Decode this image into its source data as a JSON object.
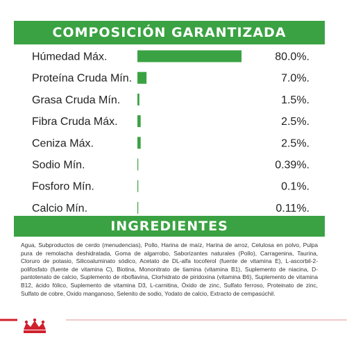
{
  "composition_title": "COMPOSICIÓN GARANTIZADA",
  "ingredients_title": "INGREDIENTES",
  "ingredients_text": "Agua, Subproductos de cerdo (menudencias), Pollo, Harina de maíz, Harina de arroz, Celulosa en polvo, Pulpa pura de remolacha deshidratada, Goma de algarrobo, Saborizantes naturales (Pollo), Carragenina, Taurina, Cloruro de potasio, Silicoaluminato sódico, Acetato de DL-alfa tocoferol (fuente de vitamina E), L-ascorbil-2-polifosfato (fuente de vitamina C), Biotina, Mononitrato de tiamina (vitamina B1), Suplemento de niacina, D-pantotenato de calcio, Suplemento de riboflavina, Clorhidrato de piridoxina (vitamina B6), Suplemento de vitamina B12, ácido fólico, Suplemento de vitamina D3, L-carnitina, Óxido de zinc, Sulfato ferroso, Proteinato de zinc, Sulfato de cobre, Oxido manganoso, Selenito de sodio, Yodato de calcio, Extracto de cempasúchil.",
  "colors": {
    "accent_green": "#3aa242",
    "brand_red": "#d0202e"
  },
  "icons": [
    "royal-canin-crown-logo"
  ],
  "chart_data": {
    "type": "bar",
    "orientation": "horizontal",
    "title": "COMPOSICIÓN GARANTIZADA",
    "categories": [
      "Húmedad Máx.",
      "Proteína Cruda Mín.",
      "Grasa Cruda Mín.",
      "Fibra Cruda Máx.",
      "Ceniza Máx.",
      "Sodio Mín.",
      "Fosforo Mín.",
      "Calcio Mín."
    ],
    "values": [
      80.0,
      7.0,
      1.5,
      2.5,
      2.5,
      0.39,
      0.1,
      0.11
    ],
    "value_labels": [
      "80.0%.",
      "7.0%.",
      "1.5%.",
      "2.5%.",
      "2.5%.",
      "0.39%.",
      "0.1%.",
      "0.11%."
    ],
    "xlim": [
      0,
      80
    ],
    "grid": false,
    "legend": "none"
  }
}
